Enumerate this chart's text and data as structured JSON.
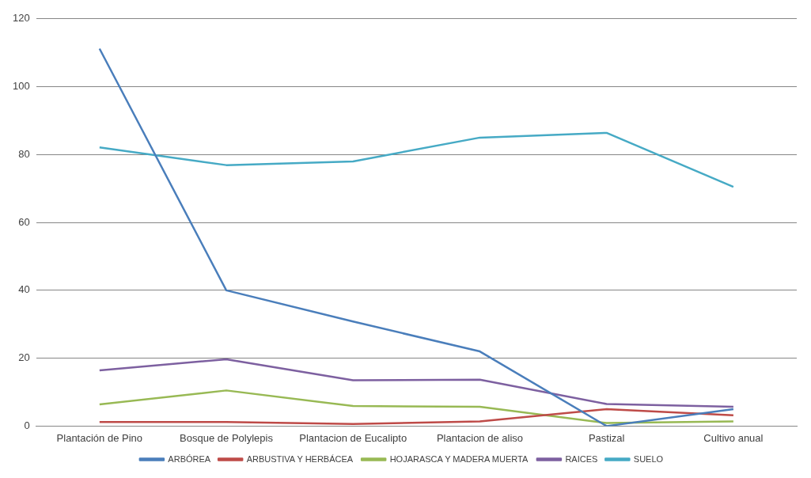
{
  "chart_data": {
    "type": "line",
    "categories": [
      "Plantación de Pino",
      "Bosque de Polylepis",
      "Plantacion de Eucalipto",
      "Plantacion de aliso",
      "Pastizal",
      "Cultivo anual"
    ],
    "series": [
      {
        "name": "ARBÓREA",
        "color": "#4a7ebb",
        "values": [
          111.2,
          40,
          30.8,
          22,
          0,
          5
        ]
      },
      {
        "name": "ARBUSTIVA Y HERBÁCEA",
        "color": "#be4b48",
        "values": [
          1.2,
          1.2,
          0.6,
          1.4,
          5,
          3.2
        ]
      },
      {
        "name": "HOJARASCA Y MADERA MUERTA",
        "color": "#98b954",
        "values": [
          6.4,
          10.5,
          5.9,
          5.7,
          0.9,
          1.4
        ]
      },
      {
        "name": "RAICES",
        "color": "#7d60a0",
        "values": [
          16.4,
          19.7,
          13.5,
          13.7,
          6.5,
          5.7
        ]
      },
      {
        "name": "SUELO",
        "color": "#46aac5",
        "values": [
          82.1,
          76.9,
          78,
          85,
          86.4,
          70.5
        ]
      }
    ],
    "ylim": [
      0,
      120
    ],
    "yticks": [
      0,
      20,
      40,
      60,
      80,
      100,
      120
    ],
    "grid": "y",
    "legend": "bottom",
    "marker": "none",
    "line_style": "solid"
  }
}
